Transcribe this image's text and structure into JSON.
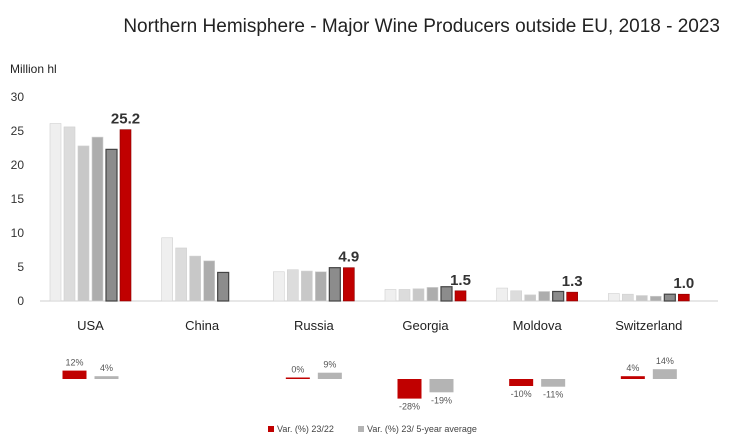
{
  "chart_data": {
    "type": "bar",
    "title": "Northern Hemisphere - Major Wine Producers outside EU, 2018 - 2023",
    "ylabel": "Million hl",
    "ylim": [
      0,
      30
    ],
    "yticks": [
      0,
      5,
      10,
      15,
      20,
      25,
      30
    ],
    "grid": false,
    "categories": [
      "USA",
      "China",
      "Russia",
      "Georgia",
      "Moldova",
      "Switzerland"
    ],
    "series": [
      {
        "values": [
          26.1,
          9.3,
          4.3,
          1.7,
          1.9,
          1.1
        ],
        "color": "#efefef"
      },
      {
        "values": [
          25.6,
          7.8,
          4.6,
          1.7,
          1.5,
          1.0
        ],
        "color": "#dcdcdc"
      },
      {
        "values": [
          22.8,
          6.6,
          4.4,
          1.8,
          0.9,
          0.8
        ],
        "color": "#c8c8c8"
      },
      {
        "values": [
          24.1,
          5.9,
          4.3,
          2.0,
          1.4,
          0.7
        ],
        "color": "#adadad"
      },
      {
        "values": [
          22.3,
          4.2,
          4.9,
          2.1,
          1.4,
          1.0
        ],
        "color": "#8c8c8c"
      },
      {
        "values": [
          25.2,
          null,
          4.9,
          1.5,
          1.3,
          1.0
        ],
        "color": "#c00000"
      }
    ],
    "value_labels": [
      "25.2",
      "",
      "4.9",
      "1.5",
      "1.3",
      "1.0"
    ],
    "variations": {
      "var_23_22": [
        12,
        null,
        0,
        -28,
        -10,
        4
      ],
      "var_23_avg": [
        4,
        null,
        9,
        -19,
        -11,
        14
      ],
      "var_23_22_labels": [
        "12%",
        "",
        "0%",
        "-28%",
        "-10%",
        "4%"
      ],
      "var_23_avg_labels": [
        "4%",
        "",
        "9%",
        "-19%",
        "-11%",
        "14%"
      ]
    },
    "legend": {
      "position": "bottom",
      "items": [
        {
          "label": "Var. (%) 23/22",
          "color": "#c00000"
        },
        {
          "label": "Var. (%) 23/ 5-year average",
          "color": "#b4b4b4"
        }
      ]
    }
  }
}
